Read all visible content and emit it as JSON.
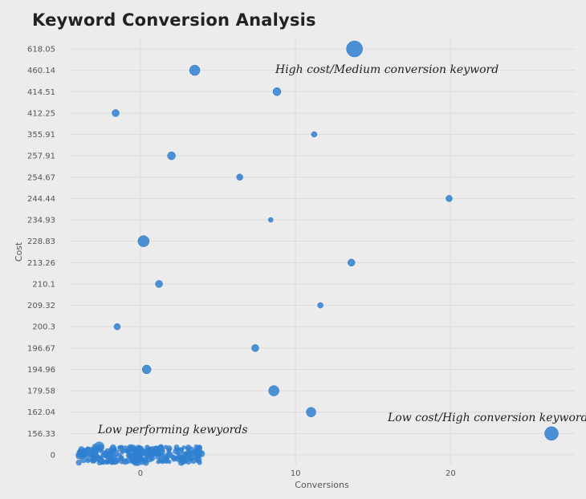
{
  "title": "Keyword Conversion Analysis",
  "chart_data": {
    "type": "scatter",
    "title": "Keyword Conversion Analysis",
    "xlabel": "Conversions",
    "ylabel": "Cost",
    "xlim": [
      -4.5,
      28
    ],
    "x_ticks": [
      0,
      10,
      20
    ],
    "y_axis": "categorical",
    "y_categories": [
      "0",
      "156.33",
      "162.04",
      "179.58",
      "194.96",
      "196.67",
      "200.3",
      "209.32",
      "210.1",
      "213.26",
      "228.83",
      "234.93",
      "244.44",
      "254.67",
      "257.91",
      "355.91",
      "412.25",
      "414.51",
      "460.14",
      "618.05"
    ],
    "grid": true,
    "marker_color": "#2f80d1",
    "points": [
      {
        "x": 13.8,
        "y": "618.05",
        "size": 10
      },
      {
        "x": 3.5,
        "y": "460.14",
        "size": 6.5
      },
      {
        "x": 8.8,
        "y": "414.51",
        "size": 5
      },
      {
        "x": -1.6,
        "y": "412.25",
        "size": 4.5
      },
      {
        "x": 11.2,
        "y": "355.91",
        "size": 3.5
      },
      {
        "x": 2.0,
        "y": "257.91",
        "size": 5
      },
      {
        "x": 6.4,
        "y": "254.67",
        "size": 4
      },
      {
        "x": 19.9,
        "y": "244.44",
        "size": 4
      },
      {
        "x": 8.4,
        "y": "234.93",
        "size": 3
      },
      {
        "x": 0.2,
        "y": "228.83",
        "size": 7
      },
      {
        "x": 13.6,
        "y": "213.26",
        "size": 4.5
      },
      {
        "x": 1.2,
        "y": "210.1",
        "size": 4.5
      },
      {
        "x": 11.6,
        "y": "209.32",
        "size": 3.5
      },
      {
        "x": -1.5,
        "y": "200.3",
        "size": 4
      },
      {
        "x": 7.4,
        "y": "196.67",
        "size": 4.5
      },
      {
        "x": 0.4,
        "y": "194.96",
        "size": 5.5
      },
      {
        "x": 8.6,
        "y": "179.58",
        "size": 6.5
      },
      {
        "x": 11.0,
        "y": "162.04",
        "size": 6
      },
      {
        "x": 26.5,
        "y": "156.33",
        "size": 8.5
      }
    ],
    "cluster": {
      "y": "0",
      "x_range": [
        -4,
        4
      ],
      "count": 260
    },
    "annotations": [
      {
        "text": "High cost/Medium conversion keyword",
        "near": "618.05"
      },
      {
        "text": "Low cost/High conversion keyword",
        "near": "156.33"
      },
      {
        "text": "Low performing kewyords",
        "near": "0"
      }
    ]
  }
}
